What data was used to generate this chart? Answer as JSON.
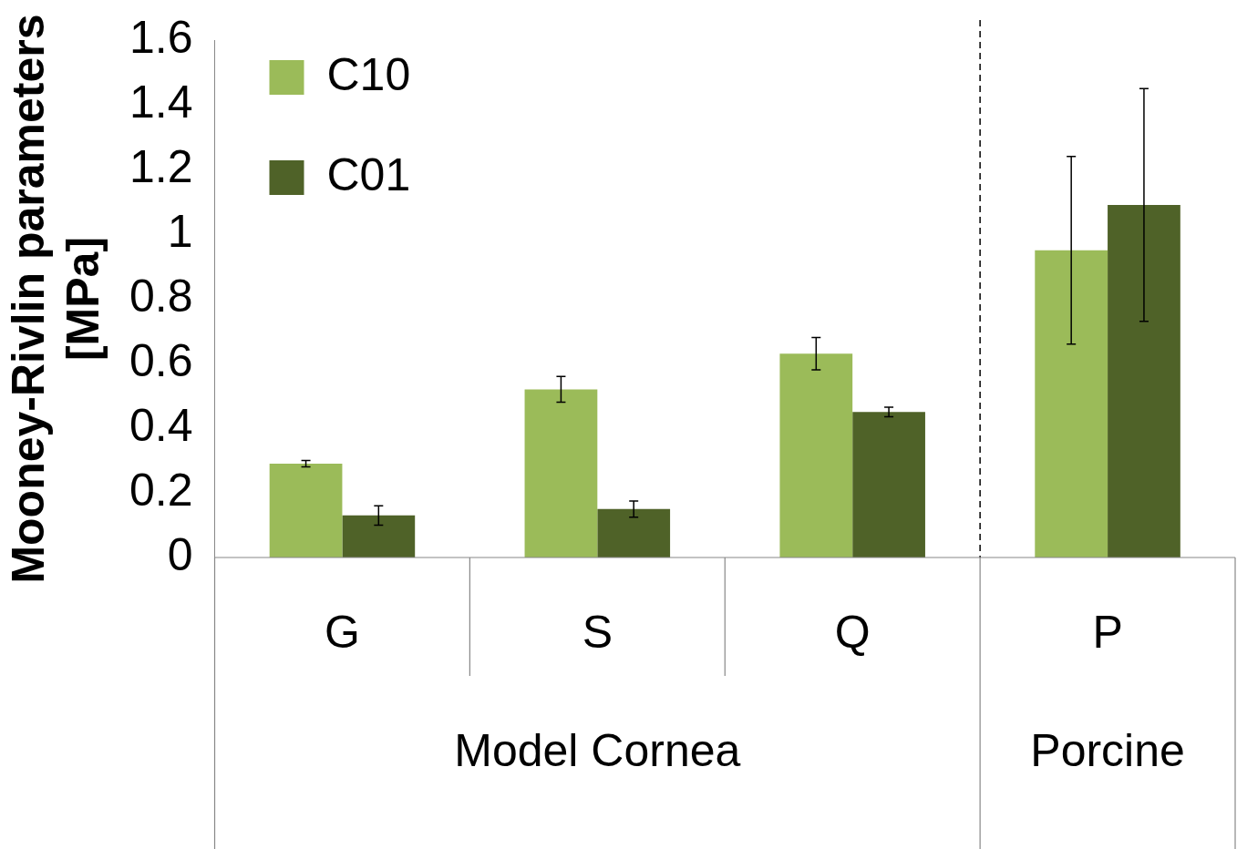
{
  "chart_data": {
    "type": "bar",
    "ylabel": "Mooney-Rivlin parameters [MPa]",
    "categories": [
      "G",
      "S",
      "Q",
      "P"
    ],
    "series": [
      {
        "name": "C10",
        "color": "#9bbb59",
        "values": [
          0.29,
          0.52,
          0.63,
          0.95
        ],
        "errors": [
          0.01,
          0.04,
          0.05,
          0.29
        ]
      },
      {
        "name": "C01",
        "color": "#4f6228",
        "values": [
          0.13,
          0.15,
          0.45,
          1.09
        ],
        "errors": [
          0.03,
          0.025,
          0.015,
          0.36
        ]
      }
    ],
    "ylim": [
      0,
      1.6
    ],
    "yticks": [
      0,
      0.2,
      0.4,
      0.6,
      0.8,
      1,
      1.2,
      1.4,
      1.6
    ],
    "grid": false,
    "legend": "top",
    "annotations": [
      "Model Cornea",
      "Porcine"
    ]
  }
}
